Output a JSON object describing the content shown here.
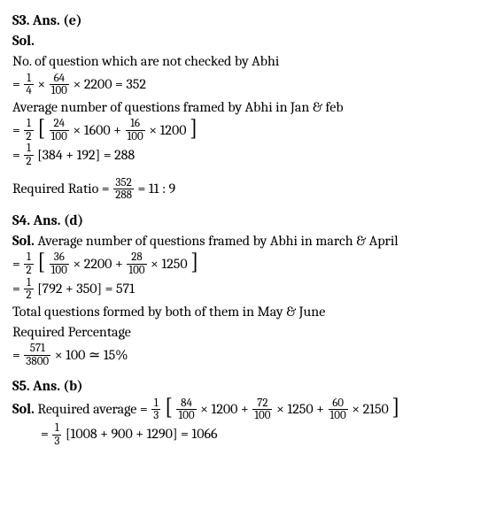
{
  "s3": {
    "heading": "S3. Ans. (e)",
    "sol_label": "Sol.",
    "l1": "No. of question which are not checked by Abhi",
    "eq1": {
      "pre": "= ",
      "f1n": "1",
      "f1d": "4",
      "m1": " × ",
      "f2n": "64",
      "f2d": "100",
      "m2": " × 2200 = 352"
    },
    "l2": "Average number of questions framed by Abhi in Jan & feb",
    "eq2": {
      "pre": "= ",
      "f1n": "1",
      "f1d": "2",
      "lb": "[",
      "f2n": "24",
      "f2d": "100",
      "m1": " × 1600 +  ",
      "f3n": "16",
      "f3d": "100",
      "m2": " × 1200",
      "rb": "]"
    },
    "eq3": {
      "pre": "= ",
      "f1n": "1",
      "f1d": "2",
      "mid": " [384 + 192] = 288"
    },
    "l3_pre": "Required Ratio = ",
    "eq4": {
      "fn": "352",
      "fd": "288",
      "post": " = 11 : 9"
    }
  },
  "s4": {
    "heading": "S4. Ans. (d)",
    "sol_label": "Sol. ",
    "l1": "Average number of questions framed by Abhi in march & April",
    "eq1": {
      "pre": "= ",
      "f1n": "1",
      "f1d": "2",
      "lb": "[",
      "f2n": "36",
      "f2d": "100",
      "m1": " × 2200 + ",
      "f3n": "28",
      "f3d": "100",
      "m2": " × 1250",
      "rb": "]"
    },
    "eq2": {
      "pre": "= ",
      "f1n": "1",
      "f1d": "2",
      "mid": " [792 + 350] = 571"
    },
    "l2": "Total questions formed by both of them in May & June",
    "l3": "Required Percentage",
    "eq3": {
      "pre": "= ",
      "fn": "571",
      "fd": "3800",
      "post": " × 100  ≃ 15%"
    }
  },
  "s5": {
    "heading": "S5. Ans. (b)",
    "sol_label": "Sol. ",
    "l1": "Required average = ",
    "eq1": {
      "f1n": "1",
      "f1d": "3",
      "lb": "[",
      "f2n": "84",
      "f2d": "100",
      "m1": " × 1200 + ",
      "f3n": "72",
      "f3d": "100",
      "m2": " × 1250 + ",
      "f4n": "60",
      "f4d": "100",
      "m3": " × 2150",
      "rb": "]"
    },
    "eq2": {
      "pre": "=",
      "f1n": "1",
      "f1d": "3",
      "mid": " [1008 + 900 + 1290] = 1066"
    }
  }
}
